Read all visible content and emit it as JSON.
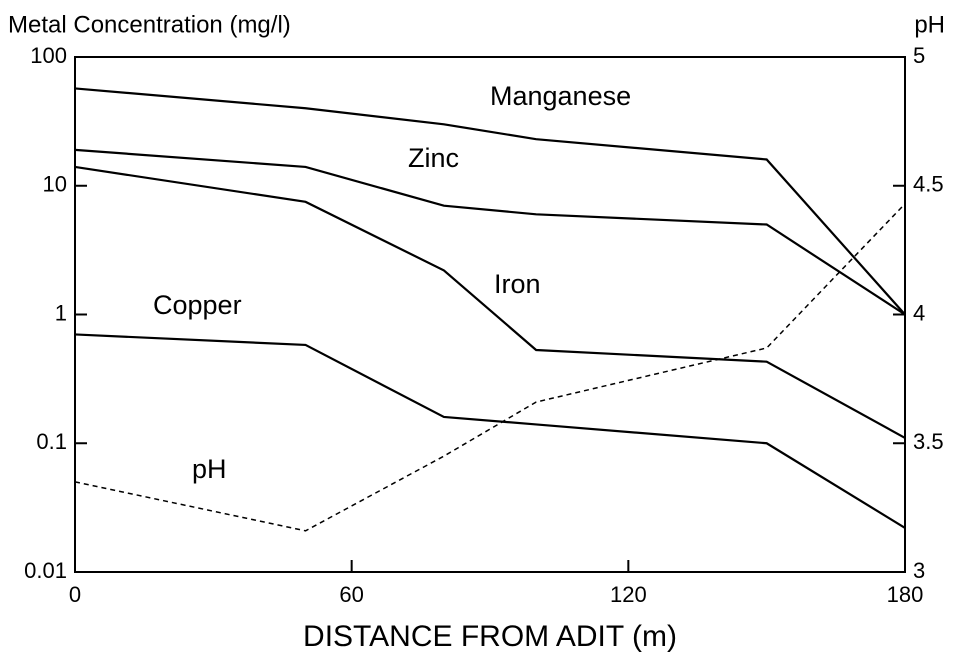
{
  "chart_data": {
    "type": "line",
    "y_label": "Metal Concentration (mg/l)",
    "y2_label": "pH",
    "x_label": "DISTANCE FROM ADIT (m)",
    "x": [
      0,
      50,
      80,
      100,
      150,
      180
    ],
    "xlim": [
      0,
      180
    ],
    "xticks": [
      0,
      60,
      120,
      180
    ],
    "ylim": [
      0.01,
      100
    ],
    "yticks": [
      0.01,
      0.1,
      1,
      10,
      100
    ],
    "y_scale": "log",
    "y2lim": [
      3,
      5
    ],
    "y2ticks": [
      3,
      3.5,
      4,
      4.5,
      5
    ],
    "series": [
      {
        "name": "Manganese",
        "color": "#000000",
        "values": [
          57,
          40,
          30,
          23,
          16,
          1
        ]
      },
      {
        "name": "Zinc",
        "color": "#000000",
        "values": [
          19,
          14,
          7,
          6,
          5,
          1
        ]
      },
      {
        "name": "Iron",
        "color": "#000000",
        "values": [
          14,
          7.5,
          2.2,
          0.53,
          0.43,
          0.11
        ]
      },
      {
        "name": "Copper",
        "color": "#000000",
        "values": [
          0.7,
          0.58,
          0.16,
          0.14,
          0.1,
          0.022
        ]
      },
      {
        "name": "pH",
        "color": "#000000",
        "axis": "y2",
        "dashed": true,
        "values": [
          3.35,
          3.16,
          3.45,
          3.66,
          3.87,
          4.43
        ]
      }
    ]
  }
}
